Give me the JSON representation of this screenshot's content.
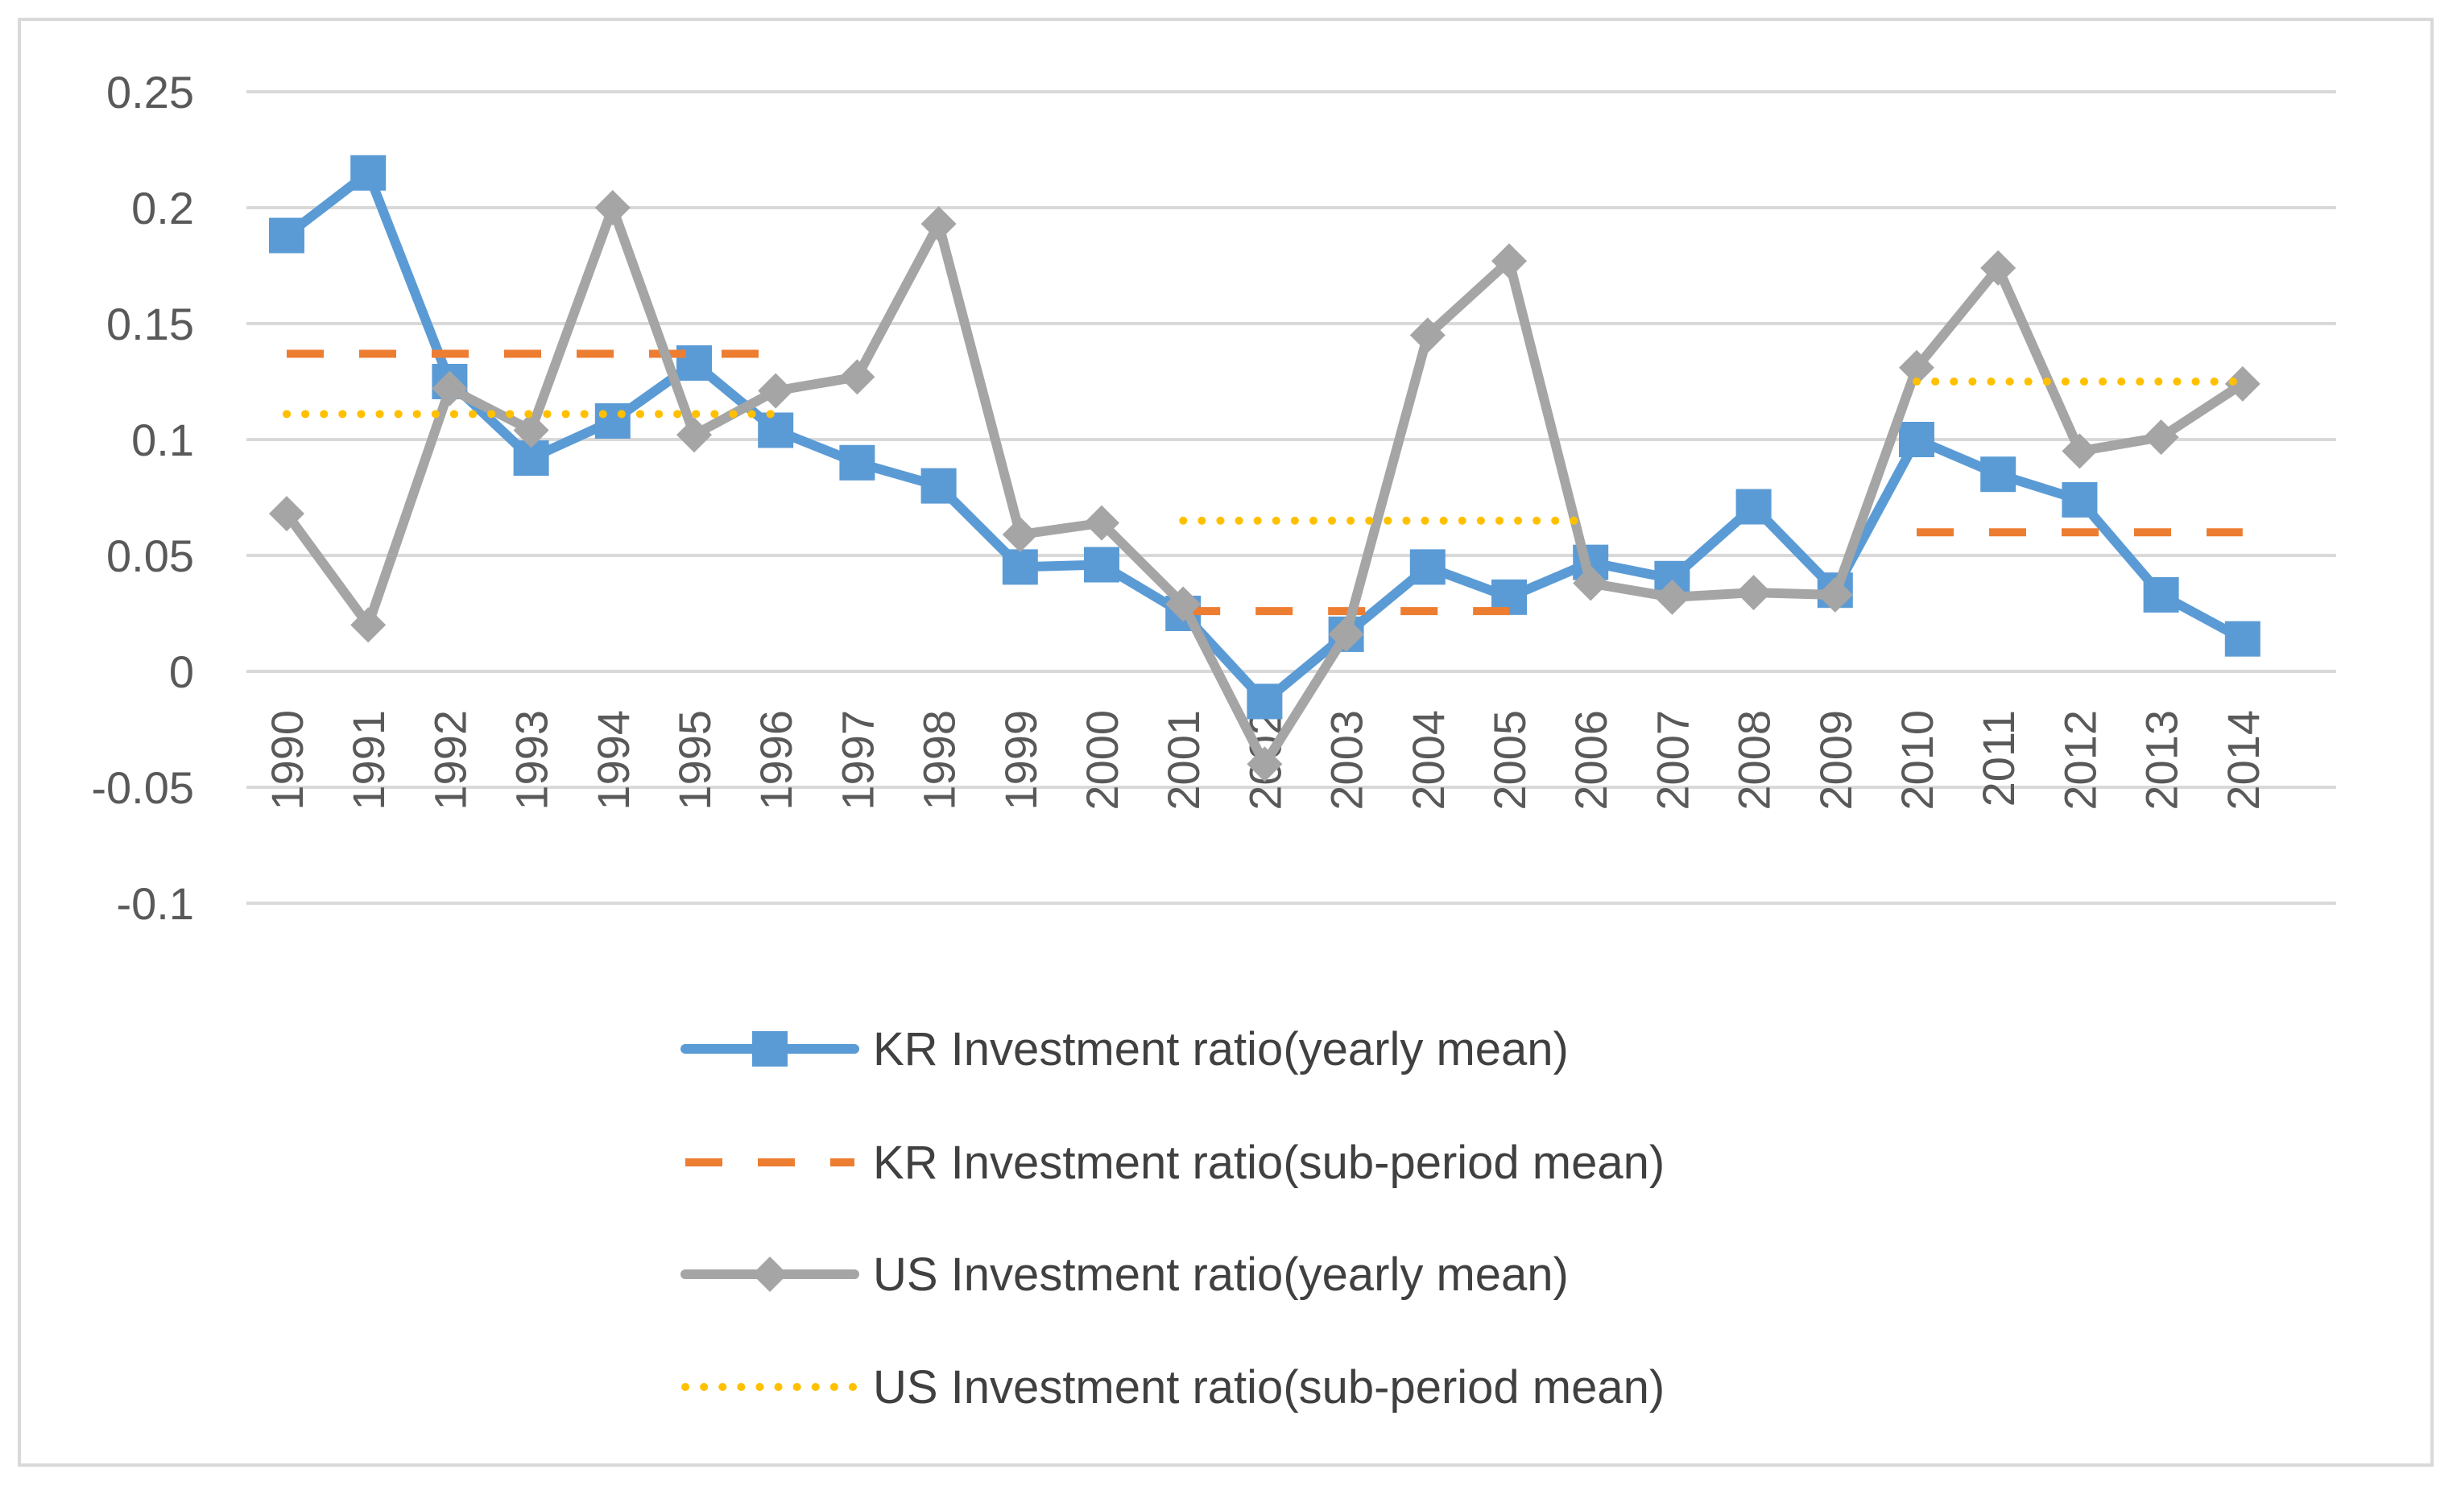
{
  "chart_data": {
    "type": "line",
    "title": "",
    "xlabel": "",
    "ylabel": "",
    "ylim": [
      -0.1,
      0.25
    ],
    "ytick_step": 0.05,
    "ytick_labels": [
      "0.25",
      "0.2",
      "0.15",
      "0.1",
      "0.05",
      "0",
      "-0.05",
      "-0.1"
    ],
    "grid": true,
    "legend_position": "bottom",
    "categories": [
      "1990",
      "1991",
      "1992",
      "1993",
      "1994",
      "1995",
      "1996",
      "1997",
      "1998",
      "1999",
      "2000",
      "2001",
      "2002",
      "2003",
      "2004",
      "2005",
      "2006",
      "2007",
      "2008",
      "2009",
      "2010",
      "2011",
      "2012",
      "2013",
      "2014"
    ],
    "series": [
      {
        "name": "KR Investment ratio(yearly mean)",
        "style": "line-square",
        "color": "#5b9bd5",
        "values": [
          0.188,
          0.215,
          0.125,
          0.092,
          0.108,
          0.133,
          0.104,
          0.09,
          0.08,
          0.045,
          0.046,
          0.025,
          -0.013,
          0.016,
          0.045,
          0.032,
          0.047,
          0.04,
          0.071,
          0.035,
          0.1,
          0.085,
          0.074,
          0.033,
          0.014
        ]
      },
      {
        "name": "KR Investment ratio(sub-period mean)",
        "style": "dashed",
        "color": "#ed7d31",
        "values": [
          0.137,
          0.137,
          0.137,
          0.137,
          0.137,
          0.137,
          0.137,
          null,
          null,
          null,
          null,
          0.026,
          0.026,
          0.026,
          0.026,
          0.026,
          null,
          null,
          null,
          null,
          0.06,
          0.06,
          0.06,
          0.06,
          0.06
        ]
      },
      {
        "name": "US Investment ratio(yearly mean)",
        "style": "line-diamond",
        "color": "#a5a5a5",
        "values": [
          0.068,
          0.02,
          0.122,
          0.104,
          0.2,
          0.102,
          0.121,
          0.127,
          0.193,
          0.059,
          0.064,
          0.029,
          -0.04,
          0.016,
          0.145,
          0.177,
          0.038,
          0.032,
          0.034,
          0.033,
          0.131,
          0.174,
          0.095,
          0.101,
          0.124
        ]
      },
      {
        "name": "US Investment ratio(sub-period mean)",
        "style": "dotted",
        "color": "#ffc000",
        "values": [
          0.111,
          0.111,
          0.111,
          0.111,
          0.111,
          0.111,
          0.111,
          null,
          null,
          null,
          null,
          0.065,
          0.065,
          0.065,
          0.065,
          0.065,
          0.065,
          null,
          null,
          null,
          0.125,
          0.125,
          0.125,
          0.125,
          0.125
        ]
      }
    ]
  }
}
